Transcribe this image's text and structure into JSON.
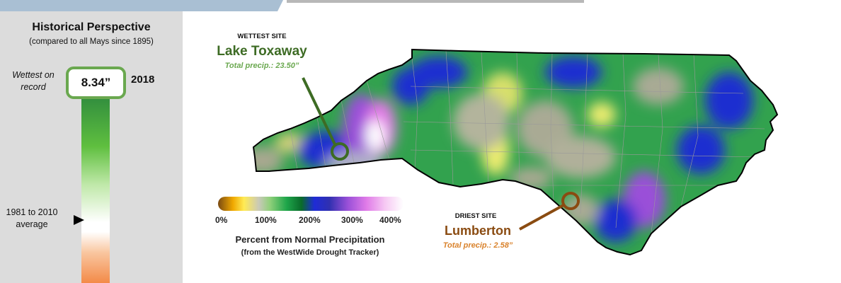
{
  "panel": {
    "title": "Historical Perspective",
    "subtitle": "(compared to all Mays since 1895)",
    "wettest_label": "Wettest on record",
    "wettest_value": "8.34”",
    "wettest_year": "2018",
    "average_label": "1981 to 2010 average",
    "bar_colors": [
      "#2e8a3e",
      "#5fbf3f",
      "#ffffff",
      "#f38a48"
    ]
  },
  "legend": {
    "ticks": [
      "0%",
      "100%",
      "200%",
      "300%",
      "400%"
    ],
    "title": "Percent from Normal Precipitation",
    "subtitle": "(from the WestWide Drought Tracker)",
    "colors": [
      "#7a4a12",
      "#f0a800",
      "#c9c9b8",
      "#1ea54a",
      "#1f2bd6",
      "#9a50d8",
      "#ffffff"
    ]
  },
  "wettest_site": {
    "heading": "WETTEST SITE",
    "name": "Lake Toxaway",
    "total": "Total precip.: 23.50”",
    "color": "#3d6b24"
  },
  "driest_site": {
    "heading": "DRIEST SITE",
    "name": "Lumberton",
    "total": "Total precip.: 2.58”",
    "color": "#8a4b11"
  }
}
